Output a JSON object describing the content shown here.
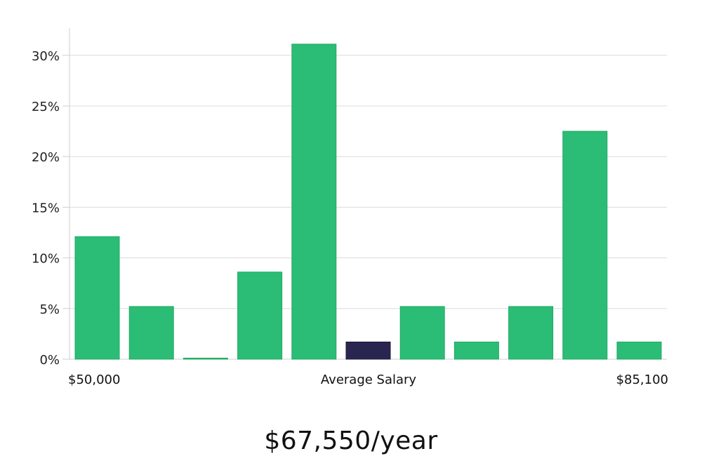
{
  "chart_data": {
    "type": "bar",
    "title": "",
    "xlabel": "Average Salary",
    "ylabel": "",
    "ylim": [
      0,
      0.33
    ],
    "y_ticks": [
      0,
      0.05,
      0.1,
      0.15,
      0.2,
      0.25,
      0.3
    ],
    "y_tick_labels": [
      "0%",
      "5%",
      "10%",
      "15%",
      "20%",
      "25%",
      "30%"
    ],
    "x_min_label": "$50,000",
    "x_max_label": "$85,100",
    "values": [
      0.121,
      0.052,
      0.0,
      0.086,
      0.311,
      0.017,
      0.052,
      0.017,
      0.052,
      0.225,
      0.017
    ],
    "highlight_index": 5,
    "colors": {
      "bar": "#2bbd75",
      "highlight": "#2a2550",
      "bar_edge": "#22a865"
    }
  },
  "salary": {
    "text": "$67,550/year"
  }
}
